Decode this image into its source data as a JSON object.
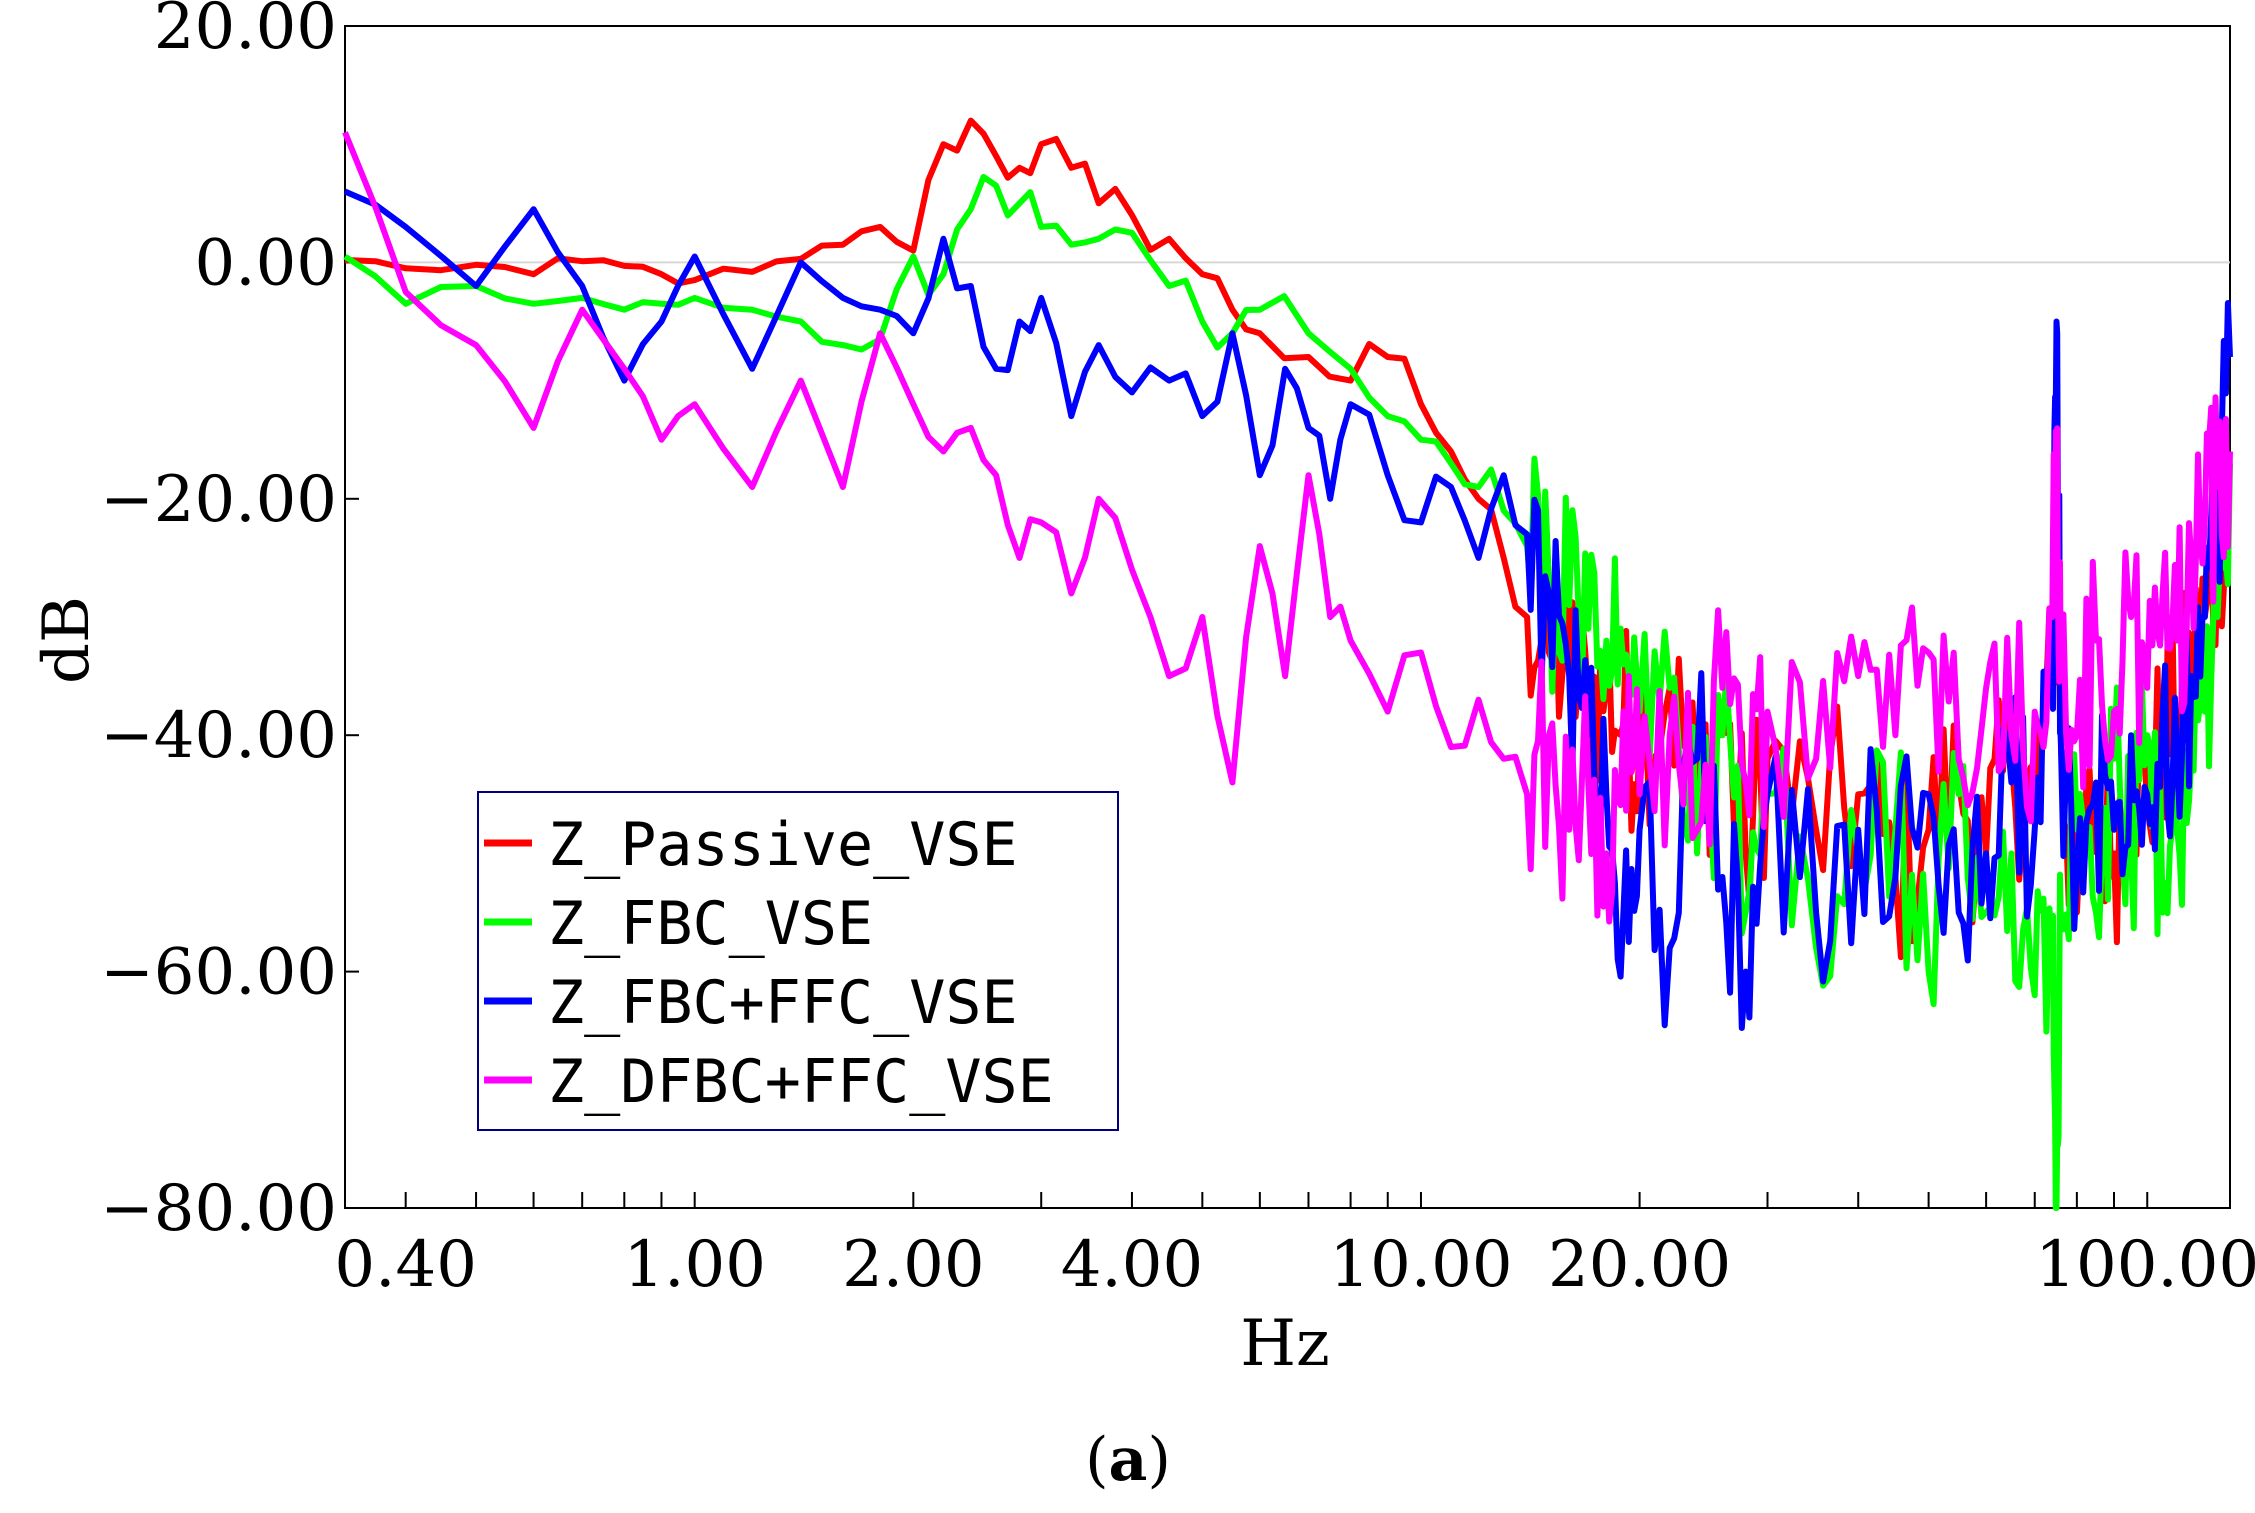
{
  "chart_data": {
    "type": "line",
    "xscale": "log",
    "xlabel": "Hz",
    "ylabel": "dB",
    "caption_open": "(",
    "caption_letter": "a",
    "caption_close": ")",
    "xlim": [
      0.33,
      130
    ],
    "ylim": [
      -80,
      20
    ],
    "x_ticks": [
      0.4,
      1.0,
      2.0,
      4.0,
      10.0,
      20.0,
      100.0
    ],
    "x_tick_labels": [
      "0.40",
      "1.00",
      "2.00",
      "4.00",
      "10.00",
      "20.00",
      "100.00"
    ],
    "y_ticks": [
      20,
      0,
      -20,
      -40,
      -60,
      -80
    ],
    "y_tick_labels": [
      "20.00",
      "0.00",
      "−20.00",
      "−40.00",
      "−60.00",
      "−80.00"
    ],
    "legend_position": "lower-left",
    "series": [
      {
        "name": "Z_Passive_VSE",
        "color": "#ff0000",
        "x": [
          0.33,
          0.4,
          0.5,
          0.6,
          0.7,
          0.8,
          0.9,
          1.0,
          1.2,
          1.4,
          1.6,
          1.8,
          2.0,
          2.2,
          2.4,
          2.6,
          2.8,
          3.0,
          3.3,
          3.6,
          4.0,
          4.5,
          5.0,
          5.5,
          6.0,
          7.0,
          8.0,
          9.0,
          10.0,
          11.0,
          12.0,
          13.0,
          14.0,
          15.0,
          16.0,
          17.0,
          18.0,
          19.0,
          20.0,
          22.0,
          24.0,
          26.0,
          28.0,
          30.0,
          35.0,
          40.0,
          45.0,
          50.0,
          55.0,
          60.0,
          65.0,
          70.0,
          74.0,
          75.0,
          76.0,
          80.0,
          85.0,
          90.0,
          95.0,
          100.0,
          105.0,
          110.0,
          115.0,
          120.0,
          125.0,
          130.0
        ],
        "y": [
          0.2,
          -0.5,
          -0.2,
          -1.0,
          0.1,
          -0.3,
          -1.0,
          -1.5,
          -0.8,
          0.3,
          1.5,
          3.0,
          1.0,
          10.0,
          12.0,
          9.0,
          8.0,
          10.0,
          8.0,
          5.0,
          4.0,
          2.0,
          -1.0,
          -4.0,
          -6.0,
          -8.0,
          -10.0,
          -8.0,
          -12.0,
          -16.0,
          -20.0,
          -25.0,
          -30.0,
          -33.0,
          -34.0,
          -37.0,
          -36.0,
          -39.0,
          -40.0,
          -36.0,
          -45.0,
          -38.0,
          -50.0,
          -42.0,
          -48.0,
          -45.0,
          -52.0,
          -48.0,
          -44.0,
          -50.0,
          -42.0,
          -46.0,
          -35.0,
          -17.0,
          -40.0,
          -55.0,
          -45.0,
          -50.0,
          -42.0,
          -46.0,
          -40.0,
          -38.0,
          -35.0,
          -30.0,
          -25.0,
          -17.0
        ]
      },
      {
        "name": "Z_FBC_VSE",
        "color": "#00ff00",
        "x": [
          0.33,
          0.4,
          0.5,
          0.6,
          0.7,
          0.8,
          0.9,
          1.0,
          1.2,
          1.4,
          1.6,
          1.8,
          2.0,
          2.2,
          2.4,
          2.6,
          2.8,
          3.0,
          3.3,
          3.6,
          4.0,
          4.5,
          5.0,
          5.5,
          6.0,
          7.0,
          8.0,
          9.0,
          10.0,
          11.0,
          12.0,
          13.0,
          14.0,
          15.0,
          16.0,
          17.0,
          18.0,
          19.0,
          20.0,
          22.0,
          24.0,
          26.0,
          28.0,
          30.0,
          35.0,
          40.0,
          45.0,
          50.0,
          55.0,
          60.0,
          65.0,
          70.0,
          74.0,
          75.0,
          76.0,
          80.0,
          85.0,
          90.0,
          95.0,
          100.0,
          105.0,
          110.0,
          115.0,
          120.0,
          125.0,
          130.0
        ],
        "y": [
          0.5,
          -3.5,
          -2.0,
          -3.5,
          -3.0,
          -4.0,
          -3.5,
          -3.0,
          -4.0,
          -5.0,
          -7.0,
          -6.5,
          0.5,
          -1.0,
          4.5,
          6.5,
          5.0,
          3.0,
          1.5,
          2.0,
          2.5,
          -2.0,
          -5.0,
          -6.0,
          -4.0,
          -6.0,
          -9.0,
          -13.0,
          -15.0,
          -17.0,
          -19.0,
          -21.0,
          -24.0,
          -27.0,
          -29.0,
          -31.0,
          -32.0,
          -34.0,
          -38.0,
          -36.0,
          -50.0,
          -40.0,
          -55.0,
          -45.0,
          -58.0,
          -50.0,
          -48.0,
          -60.0,
          -45.0,
          -55.0,
          -50.0,
          -62.0,
          -58.0,
          -83.0,
          -55.0,
          -48.0,
          -55.0,
          -42.0,
          -50.0,
          -40.0,
          -55.0,
          -48.0,
          -42.0,
          -38.0,
          -30.0,
          -17.0
        ]
      },
      {
        "name": "Z_FBC+FFC_VSE",
        "color": "#0000ff",
        "x": [
          0.33,
          0.4,
          0.5,
          0.6,
          0.7,
          0.8,
          0.9,
          1.0,
          1.2,
          1.4,
          1.6,
          1.8,
          2.0,
          2.2,
          2.4,
          2.6,
          2.8,
          3.0,
          3.3,
          3.6,
          4.0,
          4.5,
          5.0,
          5.5,
          6.0,
          6.5,
          7.0,
          7.5,
          8.0,
          9.0,
          10.0,
          11.0,
          12.0,
          13.0,
          14.0,
          15.0,
          16.0,
          17.0,
          18.0,
          19.0,
          20.0,
          22.0,
          24.0,
          26.0,
          28.0,
          30.0,
          35.0,
          40.0,
          45.0,
          50.0,
          55.0,
          60.0,
          65.0,
          70.0,
          74.0,
          75.0,
          76.0,
          80.0,
          85.0,
          90.0,
          95.0,
          100.0,
          105.0,
          110.0,
          115.0,
          120.0,
          125.0,
          130.0
        ],
        "y": [
          6.0,
          3.0,
          -2.0,
          4.5,
          -2.0,
          -10.0,
          -5.0,
          0.5,
          -9.0,
          0.0,
          -3.0,
          -4.0,
          -6.0,
          2.0,
          -2.0,
          -9.0,
          -5.0,
          -3.0,
          -13.0,
          -7.0,
          -11.0,
          -10.0,
          -13.0,
          -6.0,
          -18.0,
          -9.0,
          -14.0,
          -20.0,
          -12.0,
          -18.0,
          -22.0,
          -19.0,
          -25.0,
          -18.0,
          -23.0,
          -28.0,
          -35.0,
          -40.0,
          -45.0,
          -55.0,
          -48.0,
          -58.0,
          -42.0,
          -52.0,
          -60.0,
          -45.0,
          -55.0,
          -48.0,
          -52.0,
          -45.0,
          -55.0,
          -50.0,
          -44.0,
          -48.0,
          -35.0,
          -5.0,
          -40.0,
          -52.0,
          -44.0,
          -48.0,
          -40.0,
          -45.0,
          -38.0,
          -42.0,
          -35.0,
          -30.0,
          -22.0,
          -8.0
        ]
      },
      {
        "name": "Z_DFBC+FFC_VSE",
        "color": "#ff00ff",
        "x": [
          0.33,
          0.4,
          0.5,
          0.6,
          0.7,
          0.8,
          0.9,
          1.0,
          1.2,
          1.4,
          1.6,
          1.8,
          2.0,
          2.2,
          2.4,
          2.6,
          2.8,
          3.0,
          3.3,
          3.6,
          4.0,
          4.5,
          5.0,
          5.5,
          6.0,
          6.5,
          7.0,
          7.5,
          8.0,
          9.0,
          10.0,
          11.0,
          12.0,
          13.0,
          14.0,
          15.0,
          16.0,
          17.0,
          18.0,
          19.0,
          20.0,
          22.0,
          24.0,
          26.0,
          28.0,
          30.0,
          35.0,
          40.0,
          45.0,
          50.0,
          55.0,
          60.0,
          65.0,
          70.0,
          74.0,
          75.0,
          76.0,
          80.0,
          85.0,
          90.0,
          95.0,
          100.0,
          105.0,
          110.0,
          115.0,
          120.0,
          125.0,
          130.0
        ],
        "y": [
          11.0,
          -2.5,
          -7.0,
          -14.0,
          -4.0,
          -9.0,
          -15.0,
          -12.0,
          -19.0,
          -10.0,
          -19.0,
          -6.0,
          -12.0,
          -16.0,
          -14.0,
          -18.0,
          -25.0,
          -22.0,
          -28.0,
          -20.0,
          -26.0,
          -35.0,
          -30.0,
          -44.0,
          -24.0,
          -35.0,
          -18.0,
          -30.0,
          -32.0,
          -38.0,
          -33.0,
          -41.0,
          -37.0,
          -42.0,
          -45.0,
          -40.0,
          -48.0,
          -44.0,
          -50.0,
          -38.0,
          -45.0,
          -40.0,
          -48.0,
          -36.0,
          -44.0,
          -38.0,
          -42.0,
          -35.0,
          -40.0,
          -33.0,
          -42.0,
          -36.0,
          -40.0,
          -38.0,
          -30.0,
          -15.0,
          -35.0,
          -40.0,
          -32.0,
          -38.0,
          -30.0,
          -36.0,
          -28.0,
          -32.0,
          -25.0,
          -22.0,
          -19.0,
          -16.0
        ]
      }
    ]
  }
}
